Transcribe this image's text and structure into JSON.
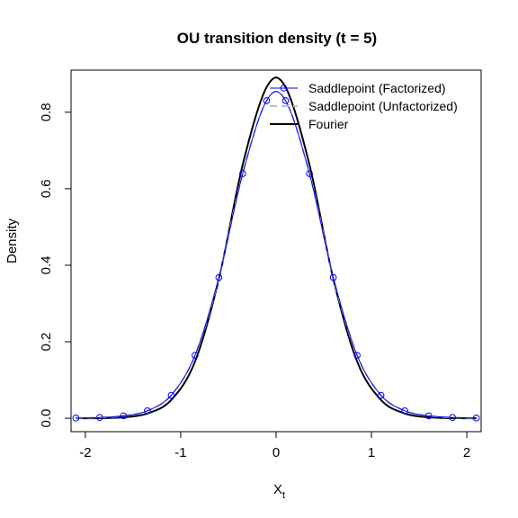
{
  "chart_data": {
    "type": "line",
    "title": "OU transition density (t = 5)",
    "xlabel_main": "X",
    "xlabel_sub": "t",
    "ylabel": "Density",
    "xlim": [
      -2.15,
      2.15
    ],
    "ylim": [
      -0.035,
      0.91
    ],
    "x_ticks": [
      -2,
      -1,
      0,
      1,
      2
    ],
    "x_tick_labels": [
      "-2",
      "-1",
      "0",
      "1",
      "2"
    ],
    "y_ticks": [
      0.0,
      0.2,
      0.4,
      0.6,
      0.8
    ],
    "y_tick_labels": [
      "0.0",
      "0.2",
      "0.4",
      "0.6",
      "0.8"
    ],
    "grid": false,
    "legend_position": "top-right",
    "legend": [
      "Saddlepoint (Factorized)",
      "Saddlepoint (Unfactorized)",
      "Fourier"
    ],
    "colors": {
      "factorized": "#0000ff",
      "unfactorized": "#bebed2",
      "fourier": "#000000",
      "axis": "#000000"
    },
    "series": [
      {
        "name": "Saddlepoint (Factorized)",
        "style": "line with open circle markers",
        "x": [
          -2.1,
          -1.85,
          -1.6,
          -1.35,
          -1.1,
          -0.85,
          -0.6,
          -0.35,
          -0.1,
          0.1,
          0.35,
          0.6,
          0.85,
          1.1,
          1.35,
          1.6,
          1.85,
          2.1
        ],
        "y": [
          0.0006,
          0.0021,
          0.0064,
          0.0195,
          0.0602,
          0.1645,
          0.368,
          0.6396,
          0.8302,
          0.8302,
          0.6396,
          0.368,
          0.1645,
          0.0602,
          0.0195,
          0.0064,
          0.0021,
          0.0006
        ]
      },
      {
        "name": "Saddlepoint (Unfactorized)",
        "style": "dashed",
        "x": [
          -2.1,
          -1.85,
          -1.6,
          -1.35,
          -1.1,
          -0.85,
          -0.6,
          -0.35,
          -0.1,
          0.1,
          0.35,
          0.6,
          0.85,
          1.1,
          1.35,
          1.6,
          1.85,
          2.1
        ],
        "y": [
          0.0006,
          0.0021,
          0.0064,
          0.0195,
          0.0602,
          0.1645,
          0.368,
          0.6396,
          0.8302,
          0.8302,
          0.6396,
          0.368,
          0.1645,
          0.0602,
          0.0195,
          0.0064,
          0.0021,
          0.0006
        ]
      },
      {
        "name": "Fourier",
        "style": "solid thick",
        "x": [
          -2.1,
          -1.85,
          -1.6,
          -1.35,
          -1.1,
          -0.85,
          -0.6,
          -0.35,
          -0.1,
          0.1,
          0.35,
          0.6,
          0.85,
          1.1,
          1.35,
          1.6,
          1.85,
          2.1
        ],
        "y": [
          0.0,
          0.0004,
          0.0026,
          0.0125,
          0.0478,
          0.1482,
          0.3643,
          0.6627,
          0.8652,
          0.8652,
          0.6627,
          0.3643,
          0.1482,
          0.0478,
          0.0125,
          0.0026,
          0.0004,
          0.0
        ]
      }
    ]
  }
}
